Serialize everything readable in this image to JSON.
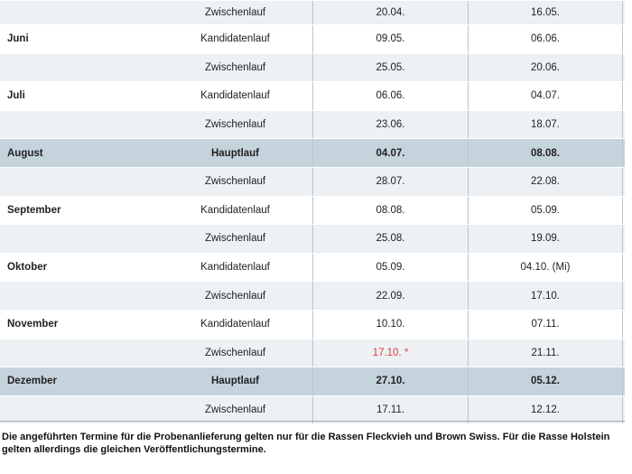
{
  "table": {
    "rows": [
      {
        "run": "Zwischenlauf",
        "date1": "20.04.",
        "date2": "16.05."
      },
      {
        "month": "Juni",
        "run": "Kandidatenlauf",
        "date1": "09.05.",
        "date2": "06.06."
      },
      {
        "run": "Zwischenlauf",
        "date1": "25.05.",
        "date2": "20.06."
      },
      {
        "month": "Juli",
        "run": "Kandidatenlauf",
        "date1": "06.06.",
        "date2": "04.07."
      },
      {
        "run": "Zwischenlauf",
        "date1": "23.06.",
        "date2": "18.07."
      },
      {
        "month": "August",
        "run": "Hauptlauf",
        "date1": "04.07.",
        "date2": "08.08.",
        "highlight": true
      },
      {
        "run": "Zwischenlauf",
        "date1": "28.07.",
        "date2": "22.08."
      },
      {
        "month": "September",
        "run": "Kandidatenlauf",
        "date1": "08.08.",
        "date2": "05.09."
      },
      {
        "run": "Zwischenlauf",
        "date1": "25.08.",
        "date2": "19.09."
      },
      {
        "month": "Oktober",
        "run": "Kandidatenlauf",
        "date1": "05.09.",
        "date2": "04.10. (Mi)"
      },
      {
        "run": "Zwischenlauf",
        "date1": "22.09.",
        "date2": "17.10."
      },
      {
        "month": "November",
        "run": "Kandidatenlauf",
        "date1": "10.10.",
        "date2": "07.11."
      },
      {
        "run": "Zwischenlauf",
        "date1": "17.10. *",
        "date2": "21.11.",
        "date1_color": "#e03a3a"
      },
      {
        "month": "Dezember",
        "run": "Hauptlauf",
        "date1": "27.10.",
        "date2": "05.12.",
        "highlight": true
      },
      {
        "run": "Zwischenlauf",
        "date1": "17.11.",
        "date2": "12.12."
      }
    ]
  },
  "footer": "Die angeführten Termine für die Probenanlieferung gelten nur für die Rassen Fleckvieh und Brown Swiss. Für die Rasse Holstein gelten allerdings die gleichen Veröffentlichungstermine."
}
